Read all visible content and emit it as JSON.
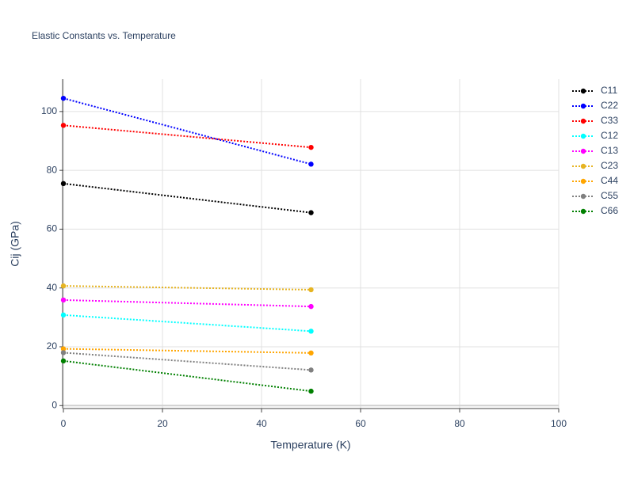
{
  "chart_data": {
    "type": "line",
    "title": "Elastic Constants vs. Temperature",
    "x_label": "Temperature (K)",
    "y_label": "Cij (GPa)",
    "x": [
      0,
      50
    ],
    "series": [
      {
        "name": "C11",
        "color": "#000000",
        "values": [
          75.5,
          65.6
        ]
      },
      {
        "name": "C22",
        "color": "#0000ff",
        "values": [
          104.5,
          82.1
        ]
      },
      {
        "name": "C33",
        "color": "#ff0000",
        "values": [
          95.3,
          87.8
        ]
      },
      {
        "name": "C12",
        "color": "#00ffff",
        "values": [
          30.8,
          25.3
        ]
      },
      {
        "name": "C13",
        "color": "#ff00ff",
        "values": [
          35.9,
          33.7
        ]
      },
      {
        "name": "C23",
        "color": "#e6b422",
        "values": [
          40.7,
          39.4
        ]
      },
      {
        "name": "C44",
        "color": "#ffa500",
        "values": [
          19.3,
          17.9
        ]
      },
      {
        "name": "C55",
        "color": "#808080",
        "values": [
          18.0,
          12.1
        ]
      },
      {
        "name": "C66",
        "color": "#008000",
        "values": [
          15.2,
          4.9
        ]
      }
    ],
    "xlim": [
      0,
      100
    ],
    "xticks": [
      0,
      20,
      40,
      60,
      80,
      100
    ],
    "ylim": [
      -1,
      111
    ],
    "yticks": [
      0,
      20,
      40,
      60,
      80,
      100
    ],
    "grid": true,
    "legend": "right"
  }
}
